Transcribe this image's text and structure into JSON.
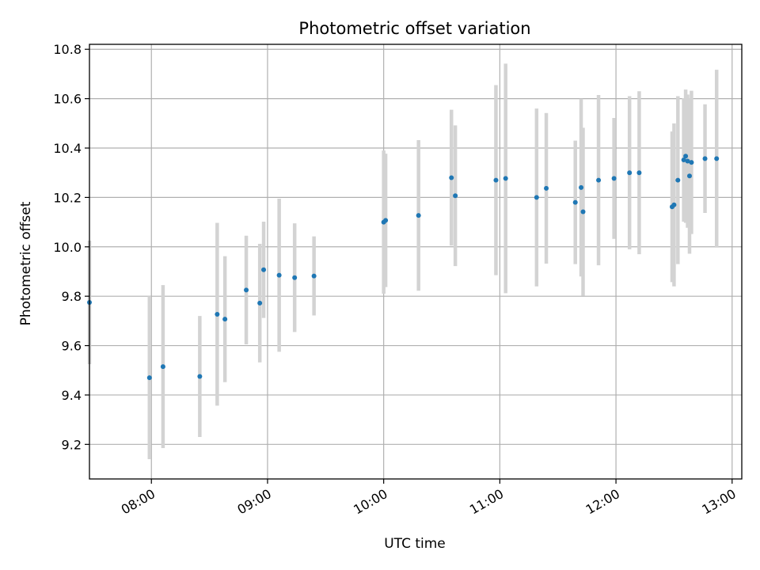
{
  "chart_data": {
    "type": "scatter",
    "title": "Photometric offset variation",
    "xlabel": "UTC time",
    "ylabel": "Photometric offset",
    "x_axis_type": "time",
    "xlim": [
      "07:28",
      "13:05"
    ],
    "ylim": [
      9.06,
      10.82
    ],
    "x_ticks": [
      "08:00",
      "09:00",
      "10:00",
      "11:00",
      "12:00",
      "13:00"
    ],
    "y_ticks": [
      9.2,
      9.4,
      9.6,
      9.8,
      10.0,
      10.2,
      10.4,
      10.6,
      10.8
    ],
    "grid": true,
    "point_color": "#1f77b4",
    "errorbar_color": "#d3d3d3",
    "series": [
      {
        "points": [
          {
            "x": "07:28",
            "y": 9.775,
            "err": 0.25
          },
          {
            "x": "07:59",
            "y": 9.47,
            "err": 0.33
          },
          {
            "x": "08:06",
            "y": 9.515,
            "err": 0.33
          },
          {
            "x": "08:25",
            "y": 9.475,
            "err": 0.245
          },
          {
            "x": "08:34",
            "y": 9.727,
            "err": 0.37
          },
          {
            "x": "08:38",
            "y": 9.707,
            "err": 0.255
          },
          {
            "x": "08:49",
            "y": 9.825,
            "err": 0.22
          },
          {
            "x": "08:56",
            "y": 9.772,
            "err": 0.24
          },
          {
            "x": "08:58",
            "y": 9.907,
            "err": 0.195
          },
          {
            "x": "09:06",
            "y": 9.885,
            "err": 0.31
          },
          {
            "x": "09:14",
            "y": 9.875,
            "err": 0.22
          },
          {
            "x": "09:24",
            "y": 9.882,
            "err": 0.16
          },
          {
            "x": "10:00",
            "y": 10.1,
            "err": 0.29
          },
          {
            "x": "10:01",
            "y": 10.107,
            "err": 0.27
          },
          {
            "x": "10:18",
            "y": 10.127,
            "err": 0.305
          },
          {
            "x": "10:35",
            "y": 10.28,
            "err": 0.275
          },
          {
            "x": "10:37",
            "y": 10.207,
            "err": 0.285
          },
          {
            "x": "10:58",
            "y": 10.27,
            "err": 0.385
          },
          {
            "x": "11:03",
            "y": 10.277,
            "err": 0.465
          },
          {
            "x": "11:19",
            "y": 10.2,
            "err": 0.36
          },
          {
            "x": "11:24",
            "y": 10.237,
            "err": 0.305
          },
          {
            "x": "11:39",
            "y": 10.18,
            "err": 0.25
          },
          {
            "x": "11:42",
            "y": 10.24,
            "err": 0.36
          },
          {
            "x": "11:43",
            "y": 10.142,
            "err": 0.34
          },
          {
            "x": "11:51",
            "y": 10.27,
            "err": 0.345
          },
          {
            "x": "11:59",
            "y": 10.277,
            "err": 0.245
          },
          {
            "x": "12:07",
            "y": 10.3,
            "err": 0.31
          },
          {
            "x": "12:12",
            "y": 10.3,
            "err": 0.33
          },
          {
            "x": "12:29",
            "y": 10.162,
            "err": 0.305
          },
          {
            "x": "12:30",
            "y": 10.17,
            "err": 0.33
          },
          {
            "x": "12:32",
            "y": 10.27,
            "err": 0.34
          },
          {
            "x": "12:35",
            "y": 10.352,
            "err": 0.25
          },
          {
            "x": "12:36",
            "y": 10.367,
            "err": 0.27
          },
          {
            "x": "12:37",
            "y": 10.347,
            "err": 0.27
          },
          {
            "x": "12:38",
            "y": 10.287,
            "err": 0.315
          },
          {
            "x": "12:39",
            "y": 10.342,
            "err": 0.29
          },
          {
            "x": "12:46",
            "y": 10.357,
            "err": 0.22
          },
          {
            "x": "12:52",
            "y": 10.357,
            "err": 0.36
          }
        ]
      }
    ]
  }
}
